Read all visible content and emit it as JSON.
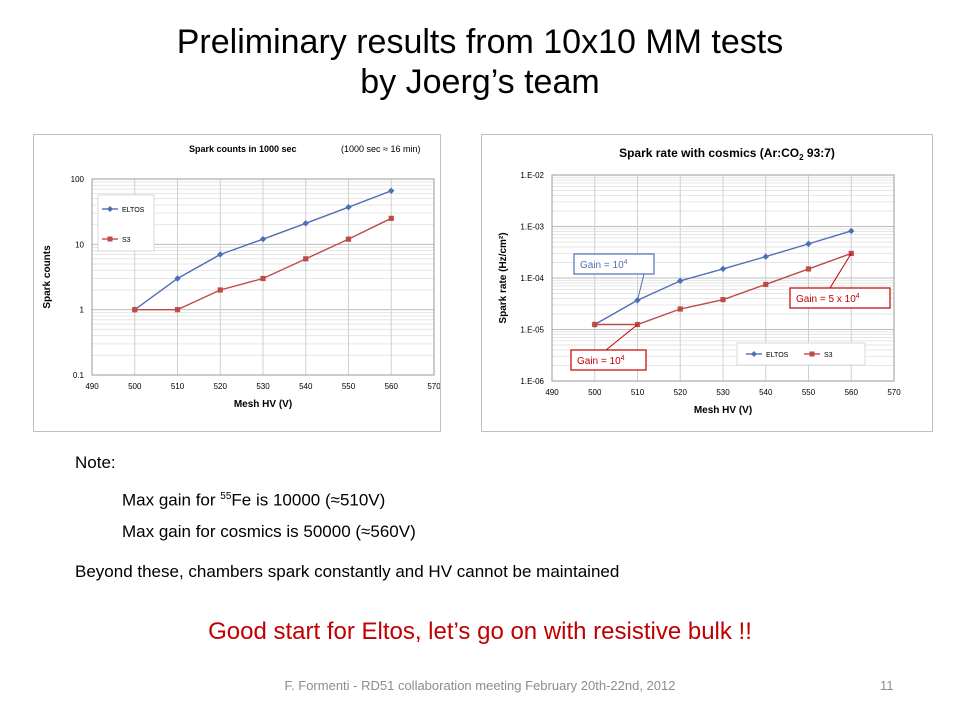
{
  "slide": {
    "title_line1": "Preliminary results from 10x10 MM tests",
    "title_line2": "by Joerg’s team",
    "note_label": "Note:",
    "note_line1_pre": "Max gain for ",
    "note_line1_sup": "55",
    "note_line1_post": "Fe is 10000 (≈510V)",
    "note_line2": "Max gain for cosmics is 50000 (≈560V)",
    "note_line3": "Beyond these, chambers spark constantly and HV cannot be maintained",
    "conclusion": "Good start for Eltos, let’s go on with resistive bulk !!",
    "footer": "F. Formenti - RD51 collaboration meeting February 20th-22nd, 2012",
    "page_number": "11",
    "conclusion_color": "#c00000"
  },
  "chart_data": [
    {
      "type": "line",
      "title": "Spark counts in 1000 sec",
      "annotation": "(1000 sec ≈ 16 min)",
      "xlabel": "Mesh HV (V)",
      "ylabel": "Spark counts",
      "xlim": [
        490,
        570
      ],
      "ylim": [
        0.1,
        100
      ],
      "yscale": "log",
      "x_ticks": [
        "490",
        "500",
        "510",
        "520",
        "530",
        "540",
        "550",
        "560",
        "570"
      ],
      "y_ticks": [
        "0.1",
        "1",
        "10",
        "100"
      ],
      "legend_position": "left",
      "grid": true,
      "series": [
        {
          "name": "ELTOS",
          "color": "#4f6fb4",
          "marker": "diamond",
          "x": [
            500,
            510,
            520,
            530,
            540,
            550,
            560
          ],
          "y": [
            1,
            3,
            7,
            12,
            21,
            37,
            66
          ]
        },
        {
          "name": "S3",
          "color": "#be4b48",
          "marker": "square",
          "x": [
            500,
            510,
            520,
            530,
            540,
            550,
            560
          ],
          "y": [
            1,
            1,
            2,
            3,
            6,
            12,
            25
          ]
        }
      ]
    },
    {
      "type": "line",
      "title": "Spark rate with cosmics (Ar:CO",
      "title_sub": "2",
      "title_tail": " 93:7)",
      "xlabel": "Mesh HV (V)",
      "ylabel": "Spark rate (Hz/cm²)",
      "xlim": [
        490,
        570
      ],
      "ylim": [
        1e-06,
        0.01
      ],
      "yscale": "log",
      "x_ticks": [
        "490",
        "500",
        "510",
        "520",
        "530",
        "540",
        "550",
        "560",
        "570"
      ],
      "y_ticks": [
        "1.E-06",
        "1.E-05",
        "1.E-04",
        "1.E-03",
        "1.E-02"
      ],
      "legend_position": "bottom-right",
      "grid": true,
      "series": [
        {
          "name": "ELTOS",
          "color": "#4f6fb4",
          "marker": "diamond",
          "x": [
            500,
            510,
            520,
            530,
            540,
            550,
            560
          ],
          "y": [
            1.25e-05,
            3.7e-05,
            8.8e-05,
            0.00015,
            0.00026,
            0.00046,
            0.00082
          ]
        },
        {
          "name": "S3",
          "color": "#be4b48",
          "marker": "square",
          "x": [
            500,
            510,
            520,
            530,
            540,
            550,
            560
          ],
          "y": [
            1.25e-05,
            1.25e-05,
            2.5e-05,
            3.8e-05,
            7.5e-05,
            0.00015,
            0.0003
          ]
        }
      ],
      "annotations": [
        {
          "text": "Gain = 10",
          "sup": "4",
          "color": "#4f6fb4",
          "x": 510,
          "y": 3.7e-05
        },
        {
          "text": "Gain = 5 x 10",
          "sup": "4",
          "color": "#c00000",
          "x": 560,
          "y": 0.0003
        },
        {
          "text": "Gain = 10",
          "sup": "4",
          "color": "#c00000",
          "x": 510,
          "y": 1.25e-05
        }
      ]
    }
  ]
}
